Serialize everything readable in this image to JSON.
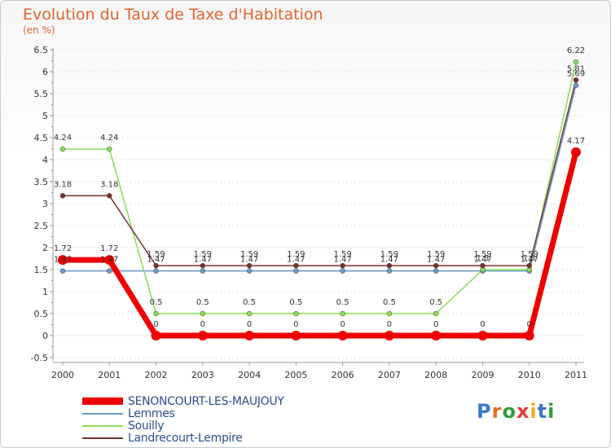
{
  "title": "Evolution du Taux de Taxe d'Habitation",
  "subtitle": "(en %)",
  "logo_text": "Proxiti",
  "colors": {
    "axis": "#999999",
    "grid": "#dddddd"
  },
  "chart_data": {
    "type": "line",
    "title": "Evolution du Taux de Taxe d'Habitation",
    "ylabel": "(en %)",
    "xlabel": "",
    "x": [
      "2000",
      "2001",
      "2002",
      "2003",
      "2004",
      "2005",
      "2006",
      "2007",
      "2008",
      "2009",
      "2010",
      "2011"
    ],
    "ylim": [
      -0.5,
      6.5
    ],
    "yticks": [
      "-0.5",
      "0",
      "0.5",
      "1",
      "1.5",
      "2",
      "2.5",
      "3",
      "3.5",
      "4",
      "4.5",
      "5",
      "5.5",
      "6",
      "6.5"
    ],
    "series": [
      {
        "name": "SENONCOURT-LES-MAUJOUY",
        "color": "#ee0000",
        "width": 7,
        "values": [
          1.72,
          1.72,
          0,
          0,
          0,
          0,
          0,
          0,
          0,
          0,
          0,
          4.17
        ],
        "labels": [
          "1.72",
          "1.72",
          "0",
          "0",
          "0",
          "0",
          "0",
          "0",
          "0",
          "0",
          "0",
          "4.17"
        ]
      },
      {
        "name": "Lemmes",
        "color": "#6a9acb",
        "width": 1.5,
        "values": [
          1.47,
          1.47,
          1.47,
          1.47,
          1.47,
          1.47,
          1.47,
          1.47,
          1.47,
          1.47,
          1.47,
          5.69
        ],
        "labels": [
          "1.47",
          "1.47",
          "1.47",
          "1.47",
          "1.47",
          "1.47",
          "1.47",
          "1.47",
          "1.47",
          "1.47",
          "1.47",
          "5.69"
        ]
      },
      {
        "name": "Souilly",
        "color": "#88dd55",
        "width": 1.5,
        "values": [
          4.24,
          4.24,
          0.5,
          0.5,
          0.5,
          0.5,
          0.5,
          0.5,
          0.5,
          1.5,
          1.5,
          6.22
        ],
        "labels": [
          "4.24",
          "4.24",
          "0.5",
          "0.5",
          "0.5",
          "0.5",
          "0.5",
          "0.5",
          "0.5",
          "1.5",
          "1.5",
          "6.22"
        ]
      },
      {
        "name": "Landrecourt-Lempire",
        "color": "#7a3030",
        "width": 1.5,
        "values": [
          3.18,
          3.18,
          1.59,
          1.59,
          1.59,
          1.59,
          1.59,
          1.59,
          1.59,
          1.59,
          1.59,
          5.81
        ],
        "labels": [
          "3.18",
          "3.18",
          "1.59",
          "1.59",
          "1.59",
          "1.59",
          "1.59",
          "1.59",
          "1.59",
          "1.59",
          "1.59",
          "5.81"
        ]
      }
    ],
    "legend_position": "bottom-left"
  }
}
